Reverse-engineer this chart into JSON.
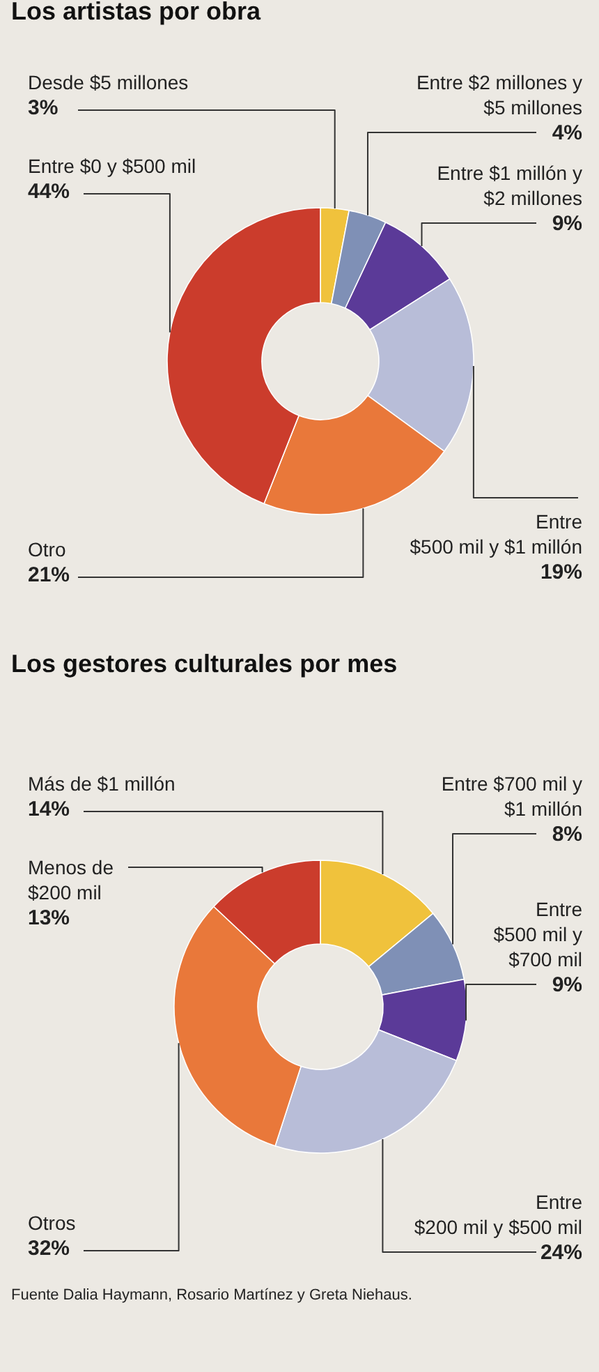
{
  "chart_data": [
    {
      "type": "donut",
      "title": "Los artistas por obra",
      "categories": [
        "Desde $5 millones",
        "Entre $2 millones y $5 millones",
        "Entre $1 millón y $2 millones",
        "Entre $500 mil y $1 millón",
        "Otro",
        "Entre $0 y $500 mil"
      ],
      "values": [
        3,
        4,
        9,
        19,
        21,
        44
      ],
      "value_labels": [
        "3%",
        "4%",
        "9%",
        "19%",
        "21%",
        "44%"
      ],
      "colors": [
        "#f0c23c",
        "#7f90b6",
        "#5b3a98",
        "#b8bdd8",
        "#e9783a",
        "#cb3c2c"
      ]
    },
    {
      "type": "donut",
      "title": "Los gestores culturales por mes",
      "categories": [
        "Más de $1 millón",
        "Entre $700 mil y $1 millón",
        "Entre $500 mil y $700 mil",
        "Entre $200 mil y $500 mil",
        "Otros",
        "Menos de $200 mil"
      ],
      "values": [
        14,
        8,
        9,
        24,
        32,
        13
      ],
      "value_labels": [
        "14%",
        "8%",
        "9%",
        "24%",
        "32%",
        "13%"
      ],
      "colors": [
        "#f0c23c",
        "#7f90b6",
        "#5b3a98",
        "#b8bdd8",
        "#e9783a",
        "#cb3c2c"
      ],
      "annotations": [
        "Fuente Dalia Haymann, Rosario Martínez y Greta Niehaus."
      ]
    }
  ]
}
